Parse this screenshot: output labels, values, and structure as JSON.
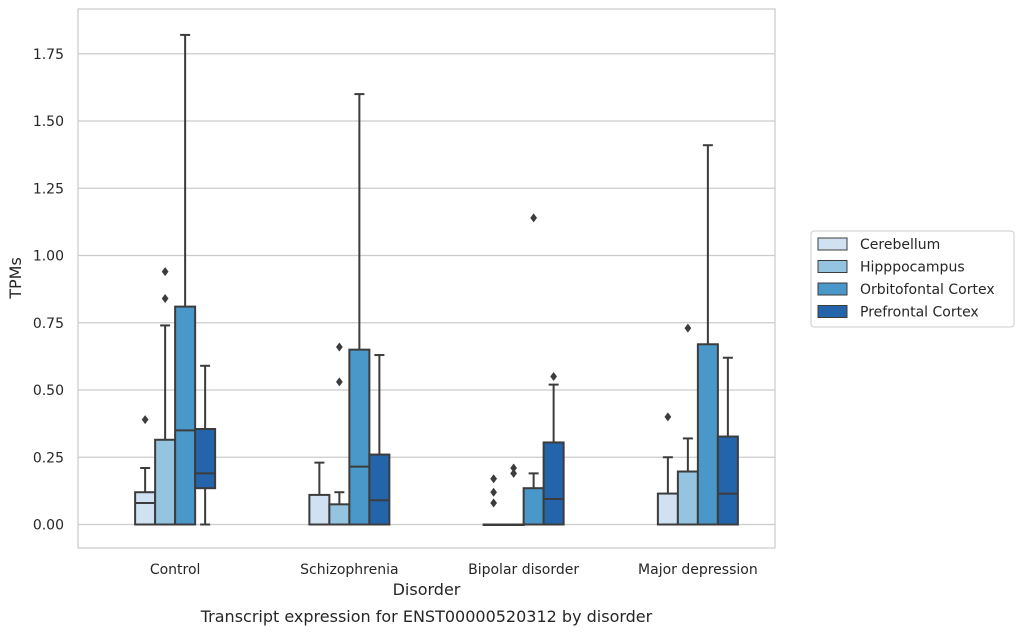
{
  "chart_data": {
    "type": "box",
    "title": "Transcript expression for ENST00000520312 by disorder",
    "xlabel": "Disorder",
    "ylabel": "TPMs",
    "categories": [
      "Control",
      "Schizophrenia",
      "Bipolar disorder",
      "Major depression"
    ],
    "ylim": [
      -0.09,
      1.92
    ],
    "yticks": [
      "0.00",
      "0.25",
      "0.50",
      "0.75",
      "1.00",
      "1.25",
      "1.50",
      "1.75"
    ],
    "grid": true,
    "legend_position": "right",
    "series": [
      {
        "name": "Cerebellum",
        "color": "#d0e1f2",
        "boxes": [
          {
            "q1": 0,
            "median": 0.08,
            "q3": 0.12,
            "whisker_low": 0,
            "whisker_high": 0.21,
            "outliers": [
              0.39
            ]
          },
          {
            "q1": 0,
            "median": 0.0,
            "q3": 0.11,
            "whisker_low": 0,
            "whisker_high": 0.23,
            "outliers": []
          },
          {
            "q1": 0,
            "median": 0,
            "q3": 0,
            "whisker_low": 0,
            "whisker_high": 0,
            "outliers": [
              0.08,
              0.12,
              0.17
            ]
          },
          {
            "q1": 0,
            "median": 0.0,
            "q3": 0.115,
            "whisker_low": 0,
            "whisker_high": 0.25,
            "outliers": [
              0.4
            ]
          }
        ]
      },
      {
        "name": "Hipppocampus",
        "color": "#94c4df",
        "boxes": [
          {
            "q1": 0,
            "median": 0.0,
            "q3": 0.315,
            "whisker_low": 0,
            "whisker_high": 0.74,
            "outliers": [
              0.84,
              0.94
            ]
          },
          {
            "q1": 0,
            "median": 0.0,
            "q3": 0.075,
            "whisker_low": 0,
            "whisker_high": 0.12,
            "outliers": [
              0.53,
              0.66
            ]
          },
          {
            "q1": 0,
            "median": 0,
            "q3": 0,
            "whisker_low": 0,
            "whisker_high": 0,
            "outliers": [
              0.19,
              0.21
            ]
          },
          {
            "q1": 0,
            "median": 0.0,
            "q3": 0.197,
            "whisker_low": 0,
            "whisker_high": 0.32,
            "outliers": [
              0.73
            ]
          }
        ]
      },
      {
        "name": "Orbitofontal Cortex",
        "color": "#4a98c9",
        "boxes": [
          {
            "q1": 0,
            "median": 0.35,
            "q3": 0.81,
            "whisker_low": 0,
            "whisker_high": 1.82,
            "outliers": []
          },
          {
            "q1": 0,
            "median": 0.215,
            "q3": 0.65,
            "whisker_low": 0,
            "whisker_high": 1.6,
            "outliers": []
          },
          {
            "q1": 0,
            "median": 0.0,
            "q3": 0.135,
            "whisker_low": 0,
            "whisker_high": 0.19,
            "outliers": [
              1.14
            ]
          },
          {
            "q1": 0,
            "median": 0.0,
            "q3": 0.67,
            "whisker_low": 0,
            "whisker_high": 1.41,
            "outliers": []
          }
        ]
      },
      {
        "name": "Prefrontal Cortex",
        "color": "#2364aa",
        "boxes": [
          {
            "q1": 0.135,
            "median": 0.19,
            "q3": 0.355,
            "whisker_low": 0,
            "whisker_high": 0.59,
            "outliers": []
          },
          {
            "q1": 0,
            "median": 0.09,
            "q3": 0.26,
            "whisker_low": 0,
            "whisker_high": 0.63,
            "outliers": []
          },
          {
            "q1": 0,
            "median": 0.095,
            "q3": 0.305,
            "whisker_low": 0,
            "whisker_high": 0.52,
            "outliers": [
              0.55
            ]
          },
          {
            "q1": 0,
            "median": 0.115,
            "q3": 0.327,
            "whisker_low": 0,
            "whisker_high": 0.62,
            "outliers": []
          }
        ]
      }
    ]
  }
}
